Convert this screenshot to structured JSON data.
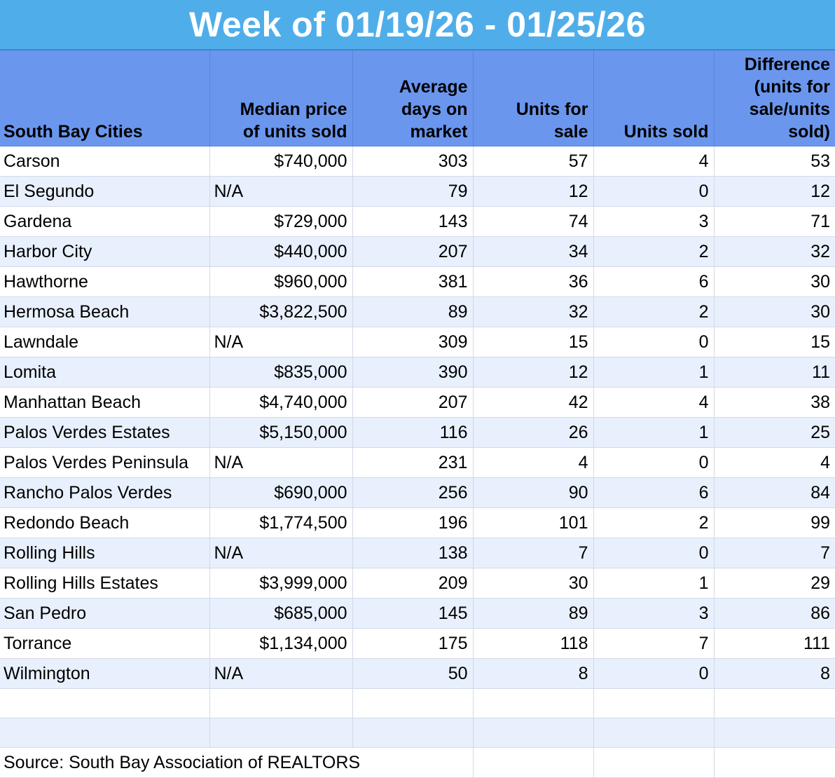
{
  "title": "Week of 01/19/26 - 01/25/26",
  "headers": [
    "South Bay Cities",
    "Median price of units sold",
    "Average days on market",
    "Units for sale",
    "Units sold",
    "Difference (units for sale/units sold)"
  ],
  "header_lines": [
    [
      "South Bay Cities"
    ],
    [
      "Median price",
      "of units sold"
    ],
    [
      "Average",
      "days on",
      "market"
    ],
    [
      "Units for",
      "sale"
    ],
    [
      "Units sold"
    ],
    [
      "Difference",
      "(units for",
      "sale/units",
      "sold)"
    ]
  ],
  "rows": [
    [
      "Carson",
      "$740,000",
      "303",
      "57",
      "4",
      "53"
    ],
    [
      "El Segundo",
      "N/A",
      "79",
      "12",
      "0",
      "12"
    ],
    [
      "Gardena",
      "$729,000",
      "143",
      "74",
      "3",
      "71"
    ],
    [
      "Harbor City",
      "$440,000",
      "207",
      "34",
      "2",
      "32"
    ],
    [
      "Hawthorne",
      "$960,000",
      "381",
      "36",
      "6",
      "30"
    ],
    [
      "Hermosa Beach",
      "$3,822,500",
      "89",
      "32",
      "2",
      "30"
    ],
    [
      "Lawndale",
      "N/A",
      "309",
      "15",
      "0",
      "15"
    ],
    [
      "Lomita",
      "$835,000",
      "390",
      "12",
      "1",
      "11"
    ],
    [
      "Manhattan Beach",
      "$4,740,000",
      "207",
      "42",
      "4",
      "38"
    ],
    [
      "Palos Verdes Estates",
      "$5,150,000",
      "116",
      "26",
      "1",
      "25"
    ],
    [
      "Palos Verdes Peninsula",
      "N/A",
      "231",
      "4",
      "0",
      "4"
    ],
    [
      "Rancho Palos Verdes",
      "$690,000",
      "256",
      "90",
      "6",
      "84"
    ],
    [
      "Redondo Beach",
      "$1,774,500",
      "196",
      "101",
      "2",
      "99"
    ],
    [
      "Rolling Hills",
      "N/A",
      "138",
      "7",
      "0",
      "7"
    ],
    [
      "Rolling Hills Estates",
      "$3,999,000",
      "209",
      "30",
      "1",
      "29"
    ],
    [
      "San Pedro",
      "$685,000",
      "145",
      "89",
      "3",
      "86"
    ],
    [
      "Torrance",
      "$1,134,000",
      "175",
      "118",
      "7",
      "111"
    ],
    [
      "Wilmington",
      "N/A",
      "50",
      "8",
      "0",
      "8"
    ]
  ],
  "source": "Source: South Bay Association of REALTORS",
  "colors": {
    "title_background": "#4faeea",
    "header_background": "#6a96ee",
    "row_alt_background": "#e8f0fd",
    "row_background": "#ffffff"
  }
}
